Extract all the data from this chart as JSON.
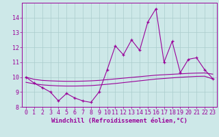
{
  "xlabel": "Windchill (Refroidissement éolien,°C)",
  "background_color": "#cde8e8",
  "line_color": "#990099",
  "x": [
    0,
    1,
    2,
    3,
    4,
    5,
    6,
    7,
    8,
    9,
    10,
    11,
    12,
    13,
    14,
    15,
    16,
    17,
    18,
    19,
    20,
    21,
    22,
    23
  ],
  "y_main": [
    10.0,
    9.6,
    9.3,
    9.0,
    8.4,
    8.9,
    8.6,
    8.4,
    8.3,
    9.0,
    10.5,
    12.1,
    11.5,
    12.5,
    11.8,
    13.7,
    14.6,
    11.0,
    12.4,
    10.3,
    11.2,
    11.3,
    10.5,
    9.9
  ],
  "y_upper": [
    10.0,
    9.85,
    9.78,
    9.75,
    9.73,
    9.72,
    9.72,
    9.73,
    9.75,
    9.78,
    9.83,
    9.88,
    9.93,
    9.98,
    10.03,
    10.08,
    10.13,
    10.16,
    10.19,
    10.22,
    10.25,
    10.27,
    10.28,
    10.2
  ],
  "y_lower": [
    9.65,
    9.55,
    9.48,
    9.44,
    9.41,
    9.4,
    9.4,
    9.41,
    9.43,
    9.47,
    9.52,
    9.57,
    9.63,
    9.69,
    9.75,
    9.81,
    9.87,
    9.91,
    9.95,
    9.99,
    10.02,
    10.05,
    10.06,
    9.88
  ],
  "ylim": [
    8.0,
    15.0
  ],
  "xlim_min": -0.5,
  "xlim_max": 23.5,
  "yticks": [
    8,
    9,
    10,
    11,
    12,
    13,
    14
  ],
  "xticks": [
    0,
    1,
    2,
    3,
    4,
    5,
    6,
    7,
    8,
    9,
    10,
    11,
    12,
    13,
    14,
    15,
    16,
    17,
    18,
    19,
    20,
    21,
    22,
    23
  ],
  "grid_color": "#aacccc",
  "xlabel_fontsize": 6.5,
  "tick_fontsize": 6.0
}
